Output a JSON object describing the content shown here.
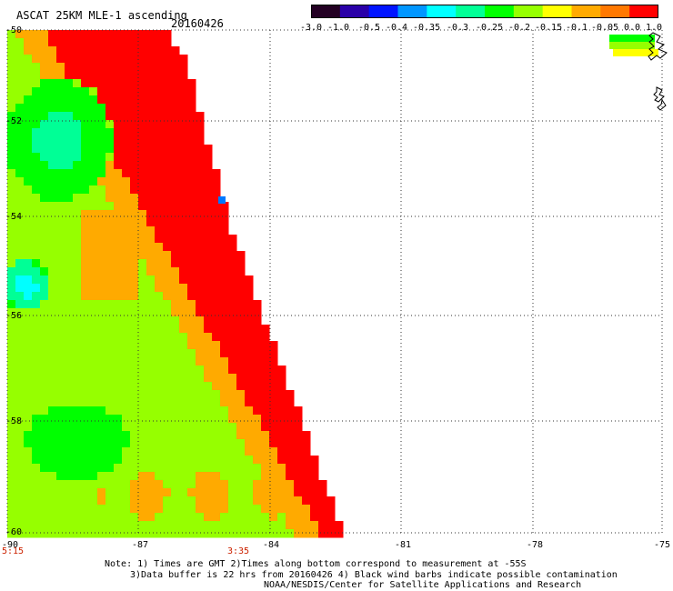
{
  "header": {
    "title": "ASCAT 25KM MLE-1 ascending",
    "date": "20160426"
  },
  "colorbar": {
    "labels": [
      "-3.0",
      "-1.0",
      "-0.5",
      "-0.4",
      "-0.35",
      "-0.3",
      "-0.25",
      "-0.2",
      "-0.15",
      "-0.1",
      "-0.05",
      "0.0",
      "1.0"
    ],
    "colors": [
      "#230023",
      "#2a00a8",
      "#0014ff",
      "#0096ff",
      "#00ffff",
      "#00ff96",
      "#00ff00",
      "#96ff00",
      "#ffff00",
      "#ffaa00",
      "#ff7800",
      "#ff0000"
    ]
  },
  "map": {
    "lat_labels": [
      "-50",
      "-52",
      "-54",
      "-56",
      "-58",
      "-60"
    ],
    "lon_labels": [
      "-90",
      "-87",
      "-84",
      "-81",
      "-78",
      "-75"
    ],
    "times": [
      "5:15",
      "3:35"
    ]
  },
  "notes": {
    "line1": "Note: 1) Times are GMT 2)Times along bottom correspond to measurement at -55S",
    "line2": "3)Data buffer is 22 hrs from 20160426 4) Black wind barbs indicate possible contamination",
    "line3": "NOAA/NESDIS/Center for Satellite Applications and Research"
  }
}
